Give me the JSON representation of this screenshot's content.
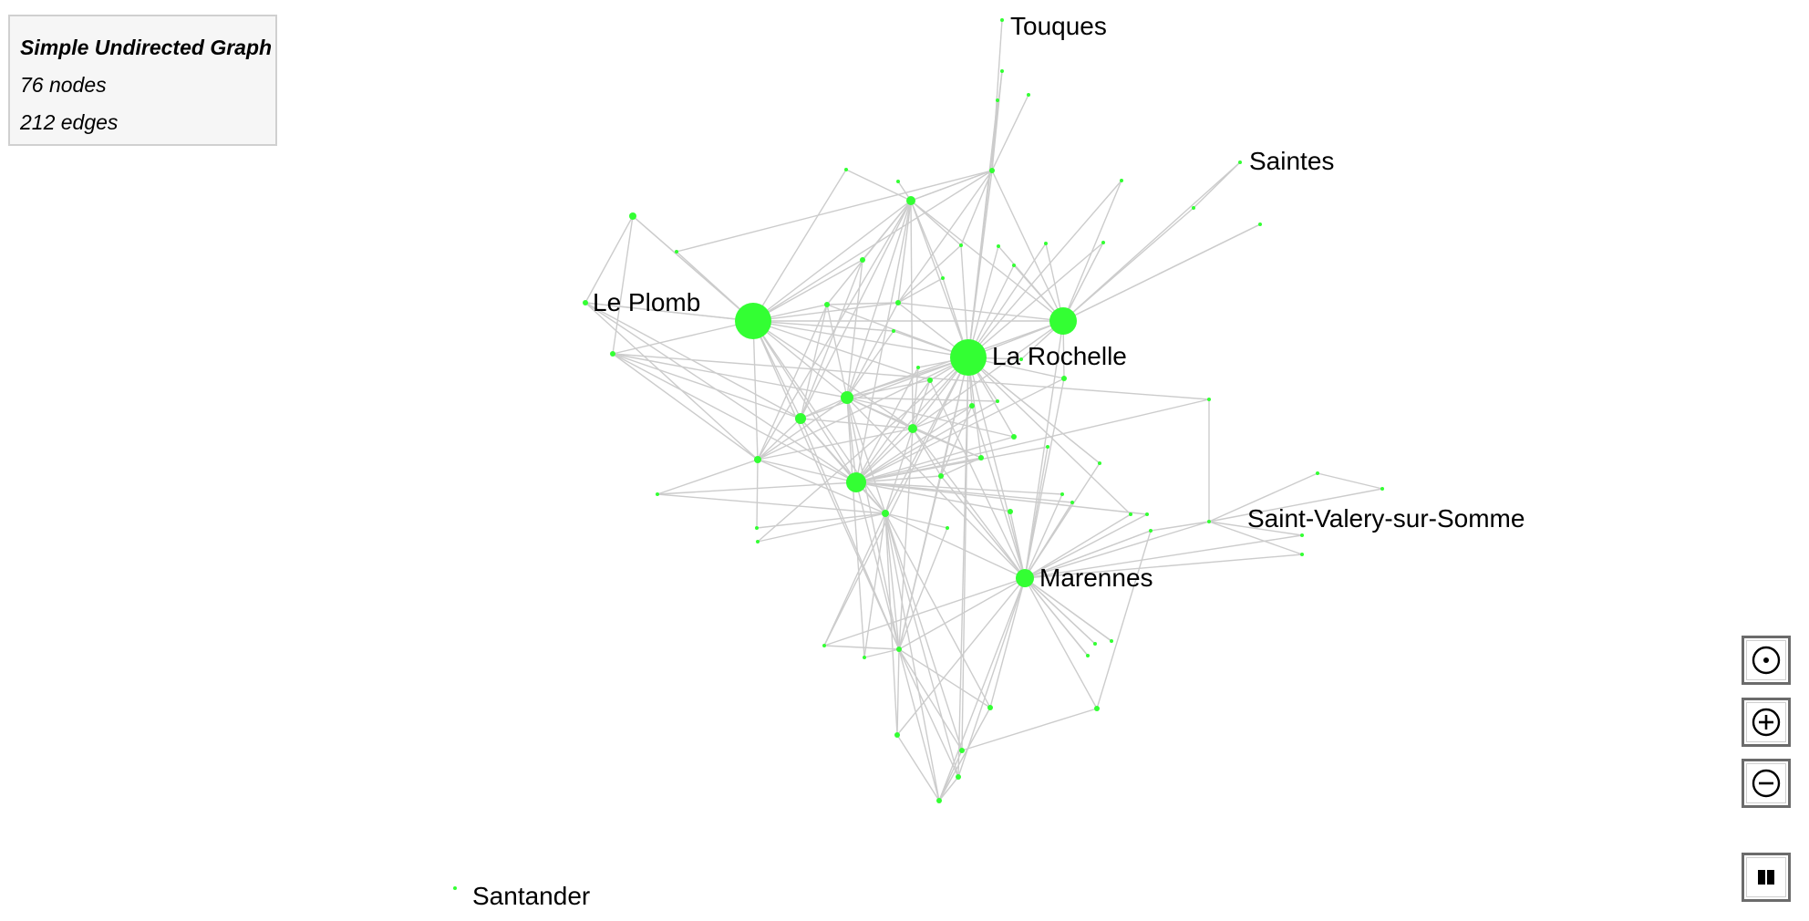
{
  "info": {
    "title": "Simple Undirected Graph",
    "nodes_label": "76 nodes",
    "edges_label": "212 edges"
  },
  "graph": {
    "node_color": "#33ff33",
    "edge_color": "#cccccc",
    "labels": {
      "touques": "Touques",
      "saintes": "Saintes",
      "le_plomb": "Le Plomb",
      "la_rochelle": "La Rochelle",
      "saint_valery": "Saint-Valery-sur-Somme",
      "marennes": "Marennes",
      "santander": "Santander"
    }
  },
  "controls": [
    {
      "name": "recenter-button",
      "icon": "target-icon"
    },
    {
      "name": "zoom-in-button",
      "icon": "plus-circle-icon"
    },
    {
      "name": "zoom-out-button",
      "icon": "minus-circle-icon"
    },
    {
      "name": "pause-button",
      "icon": "pause-icon"
    }
  ]
}
